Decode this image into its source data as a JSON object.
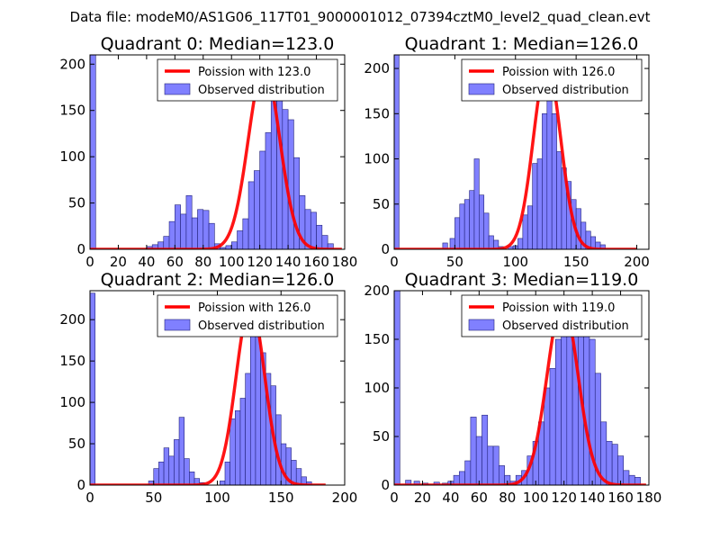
{
  "suptitle": "Data file: modeM0/AS1G06_117T01_9000001012_07394cztM0_level2_quad_clean.evt",
  "colors": {
    "bar_fill": "#8080ff",
    "bar_edge": "#22227a",
    "fit_line": "#ff0000",
    "axis": "#000000"
  },
  "legend_labels": {
    "fit": "Poission with",
    "observed": "Observed distribution"
  },
  "chart_data": [
    {
      "type": "bar",
      "title": "Quadrant 0: Median=123.0",
      "median": 123.0,
      "legend_fit_value": "123.0",
      "xlim": [
        0,
        180
      ],
      "ylim": [
        0,
        210
      ],
      "xticks": [
        0,
        20,
        40,
        60,
        80,
        100,
        120,
        140,
        160,
        180
      ],
      "yticks": [
        0,
        50,
        100,
        150,
        200
      ],
      "bin_width": 4,
      "bins": [
        [
          0,
          210
        ],
        [
          40,
          3
        ],
        [
          44,
          5
        ],
        [
          48,
          8
        ],
        [
          52,
          14
        ],
        [
          56,
          30
        ],
        [
          60,
          48
        ],
        [
          64,
          38
        ],
        [
          68,
          58
        ],
        [
          72,
          34
        ],
        [
          76,
          43
        ],
        [
          80,
          42
        ],
        [
          84,
          28
        ],
        [
          88,
          6
        ],
        [
          92,
          2
        ],
        [
          96,
          4
        ],
        [
          100,
          8
        ],
        [
          104,
          20
        ],
        [
          108,
          33
        ],
        [
          112,
          73
        ],
        [
          116,
          85
        ],
        [
          120,
          106
        ],
        [
          124,
          126
        ],
        [
          128,
          180
        ],
        [
          132,
          162
        ],
        [
          136,
          151
        ],
        [
          140,
          140
        ],
        [
          144,
          99
        ],
        [
          148,
          58
        ],
        [
          152,
          43
        ],
        [
          156,
          40
        ],
        [
          160,
          26
        ],
        [
          164,
          15
        ],
        [
          168,
          6
        ]
      ],
      "fit_peak": 197,
      "fit_sigma": 11.1,
      "fit_range": [
        0,
        178
      ]
    },
    {
      "type": "bar",
      "title": "Quadrant 1: Median=126.0",
      "median": 126.0,
      "legend_fit_value": "126.0",
      "xlim": [
        0,
        210
      ],
      "ylim": [
        0,
        215
      ],
      "xticks": [
        0,
        50,
        100,
        150,
        200
      ],
      "yticks": [
        0,
        50,
        100,
        150,
        200
      ],
      "bin_width": 4,
      "bins": [
        [
          0,
          215
        ],
        [
          40,
          7
        ],
        [
          46,
          12
        ],
        [
          50,
          35
        ],
        [
          54,
          50
        ],
        [
          58,
          55
        ],
        [
          62,
          65
        ],
        [
          66,
          100
        ],
        [
          70,
          60
        ],
        [
          74,
          40
        ],
        [
          78,
          15
        ],
        [
          82,
          10
        ],
        [
          86,
          3
        ],
        [
          94,
          3
        ],
        [
          98,
          4
        ],
        [
          102,
          12
        ],
        [
          106,
          38
        ],
        [
          110,
          48
        ],
        [
          114,
          95
        ],
        [
          118,
          100
        ],
        [
          122,
          150
        ],
        [
          126,
          180
        ],
        [
          130,
          150
        ],
        [
          134,
          108
        ],
        [
          138,
          90
        ],
        [
          142,
          75
        ],
        [
          146,
          55
        ],
        [
          150,
          45
        ],
        [
          154,
          30
        ],
        [
          158,
          20
        ],
        [
          162,
          14
        ],
        [
          166,
          8
        ],
        [
          170,
          5
        ]
      ],
      "fit_peak": 204,
      "fit_sigma": 11.2,
      "fit_range": [
        0,
        200
      ]
    },
    {
      "type": "bar",
      "title": "Quadrant 2: Median=126.0",
      "median": 126.0,
      "legend_fit_value": "126.0",
      "xlim": [
        0,
        200
      ],
      "ylim": [
        0,
        235
      ],
      "xticks": [
        0,
        50,
        100,
        150,
        200
      ],
      "yticks": [
        0,
        50,
        100,
        150,
        200
      ],
      "bin_width": 4,
      "bins": [
        [
          0,
          232
        ],
        [
          46,
          5
        ],
        [
          50,
          20
        ],
        [
          54,
          28
        ],
        [
          58,
          45
        ],
        [
          62,
          35
        ],
        [
          66,
          55
        ],
        [
          70,
          82
        ],
        [
          74,
          32
        ],
        [
          78,
          16
        ],
        [
          82,
          8
        ],
        [
          86,
          3
        ],
        [
          102,
          5
        ],
        [
          106,
          28
        ],
        [
          110,
          80
        ],
        [
          114,
          90
        ],
        [
          118,
          105
        ],
        [
          122,
          135
        ],
        [
          126,
          220
        ],
        [
          130,
          185
        ],
        [
          134,
          160
        ],
        [
          138,
          135
        ],
        [
          142,
          120
        ],
        [
          146,
          85
        ],
        [
          150,
          50
        ],
        [
          154,
          45
        ],
        [
          158,
          30
        ],
        [
          162,
          20
        ],
        [
          166,
          10
        ],
        [
          170,
          4
        ]
      ],
      "fit_peak": 218,
      "fit_sigma": 11.2,
      "fit_range": [
        0,
        185
      ]
    },
    {
      "type": "bar",
      "title": "Quadrant 3: Median=119.0",
      "median": 119.0,
      "legend_fit_value": "119.0",
      "xlim": [
        0,
        180
      ],
      "ylim": [
        0,
        200
      ],
      "xticks": [
        0,
        20,
        40,
        60,
        80,
        100,
        120,
        140,
        160,
        180
      ],
      "yticks": [
        0,
        50,
        100,
        150,
        200
      ],
      "bin_width": 4,
      "bins": [
        [
          0,
          200
        ],
        [
          8,
          5
        ],
        [
          14,
          4
        ],
        [
          20,
          2
        ],
        [
          28,
          3
        ],
        [
          34,
          2
        ],
        [
          38,
          4
        ],
        [
          42,
          10
        ],
        [
          46,
          14
        ],
        [
          50,
          25
        ],
        [
          54,
          70
        ],
        [
          58,
          50
        ],
        [
          62,
          72
        ],
        [
          66,
          40
        ],
        [
          70,
          40
        ],
        [
          74,
          20
        ],
        [
          78,
          10
        ],
        [
          82,
          4
        ],
        [
          86,
          10
        ],
        [
          90,
          15
        ],
        [
          94,
          30
        ],
        [
          98,
          45
        ],
        [
          102,
          65
        ],
        [
          106,
          100
        ],
        [
          110,
          120
        ],
        [
          114,
          150
        ],
        [
          118,
          180
        ],
        [
          122,
          170
        ],
        [
          126,
          160
        ],
        [
          130,
          185
        ],
        [
          134,
          170
        ],
        [
          138,
          150
        ],
        [
          142,
          115
        ],
        [
          146,
          65
        ],
        [
          150,
          45
        ],
        [
          154,
          42
        ],
        [
          158,
          30
        ],
        [
          162,
          15
        ],
        [
          166,
          10
        ],
        [
          170,
          8
        ]
      ],
      "fit_peak": 188,
      "fit_sigma": 10.9,
      "fit_range": [
        0,
        178
      ]
    }
  ]
}
